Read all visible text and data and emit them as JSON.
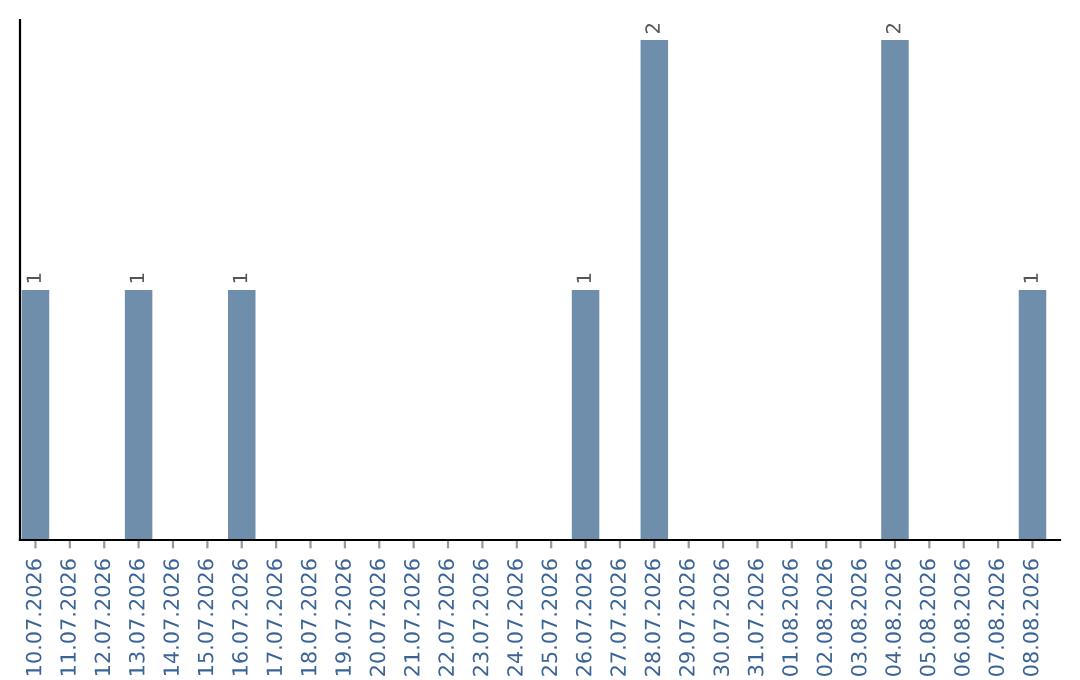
{
  "chart_data": {
    "type": "bar",
    "categories": [
      "10.07.2026",
      "11.07.2026",
      "12.07.2026",
      "13.07.2026",
      "14.07.2026",
      "15.07.2026",
      "16.07.2026",
      "17.07.2026",
      "18.07.2026",
      "19.07.2026",
      "20.07.2026",
      "21.07.2026",
      "22.07.2026",
      "23.07.2026",
      "24.07.2026",
      "25.07.2026",
      "26.07.2026",
      "27.07.2026",
      "28.07.2026",
      "29.07.2026",
      "30.07.2026",
      "31.07.2026",
      "01.08.2026",
      "02.08.2026",
      "03.08.2026",
      "04.08.2026",
      "05.08.2026",
      "06.08.2026",
      "07.08.2026",
      "08.08.2026"
    ],
    "values": [
      1,
      0,
      0,
      1,
      0,
      0,
      1,
      0,
      0,
      0,
      0,
      0,
      0,
      0,
      0,
      0,
      1,
      0,
      2,
      0,
      0,
      0,
      0,
      0,
      0,
      2,
      0,
      0,
      0,
      1
    ],
    "value_labels": [
      "1",
      null,
      null,
      "1",
      null,
      null,
      "1",
      null,
      null,
      null,
      null,
      null,
      null,
      null,
      null,
      null,
      "1",
      null,
      "2",
      null,
      null,
      null,
      null,
      null,
      null,
      "2",
      null,
      null,
      null,
      "1"
    ],
    "color": "#6e8eab",
    "ylim": [
      0,
      2.08
    ],
    "tick_labels": "x",
    "grid": false,
    "legend": false
  }
}
